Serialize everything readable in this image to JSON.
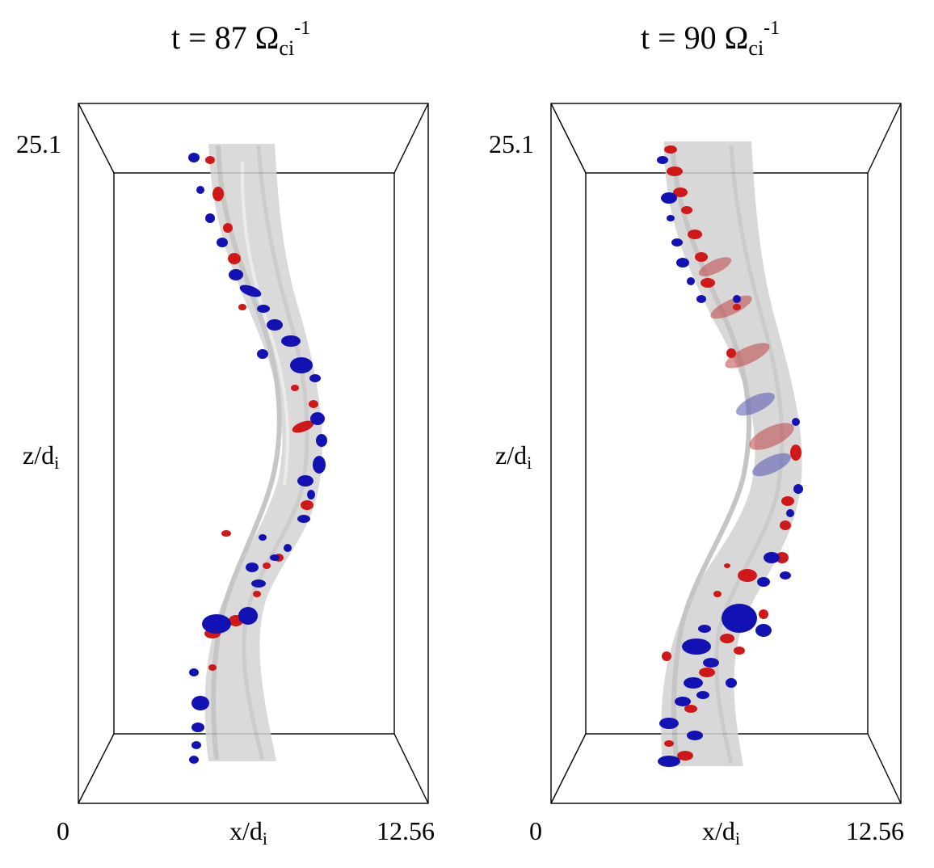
{
  "panels": [
    {
      "time_prefix": "t = 87 Ω",
      "time_sub": "ci",
      "time_sup": "-1",
      "z_max": "25.1",
      "z_label": "z/d",
      "z_label_sub": "i",
      "x_min": "0",
      "x_label": "x/d",
      "x_label_sub": "i",
      "x_max": "12.56"
    },
    {
      "time_prefix": "t = 90 Ω",
      "time_sub": "ci",
      "time_sup": "-1",
      "z_max": "25.1",
      "z_label": "z/d",
      "z_label_sub": "i",
      "x_min": "0",
      "x_label": "x/d",
      "x_label_sub": "i",
      "x_max": "12.56"
    }
  ],
  "colors": {
    "tube": "#c8c8c8",
    "positive": "#d01818",
    "negative": "#1010b8",
    "frame": "#000000"
  }
}
